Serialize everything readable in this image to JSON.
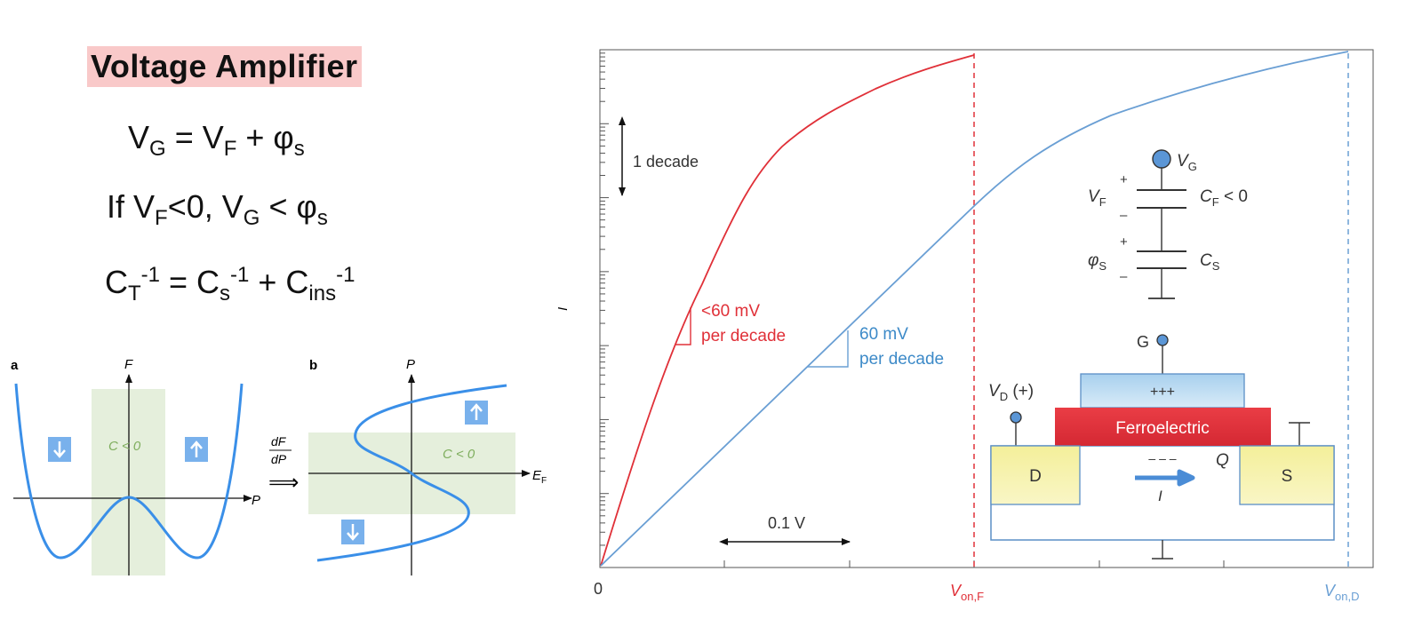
{
  "left": {
    "title": "Voltage  Amplifier",
    "eq1": {
      "a": "V",
      "a_sub": "G",
      "b": " = V",
      "b_sub": "F",
      "c": " + φ",
      "c_sub": "s"
    },
    "eq2": {
      "a": "If V",
      "a_sub": "F",
      "b": "<0, V",
      "b_sub": "G",
      "c": " < φ",
      "c_sub": "s"
    },
    "eq3": {
      "a": "C",
      "a_sub": "T",
      "a_sup": "-1",
      "b": " = C",
      "b_sub": "s",
      "b_sup": "-1",
      "c": " + C",
      "c_sub": "ins",
      "c_sup": "-1"
    }
  },
  "panel_a": {
    "label": "a",
    "y_axis": "F",
    "x_axis": "P",
    "region_label": "C < 0"
  },
  "panel_b": {
    "label": "b",
    "y_axis": "P",
    "x_axis": "E",
    "x_axis_sub": "F",
    "region_label": "C < 0"
  },
  "arrow_between": {
    "num": "dF",
    "den": "dP",
    "symbol": "⟹"
  },
  "chart": {
    "y_label": "I",
    "x_origin": "0",
    "decade_label": "1 decade",
    "scale_label": "0.1 V",
    "red_label_line1": "<60 mV",
    "red_label_line2": "per decade",
    "blue_label_line1": "60 mV",
    "blue_label_line2": "per decade",
    "von_f": "V",
    "von_f_sub": "on,F",
    "von_d": "V",
    "von_d_sub": "on,D",
    "colors": {
      "red": "#e03038",
      "blue": "#6a9fd4",
      "green": "#e5efdc",
      "axis": "#333333"
    }
  },
  "circuit": {
    "vg": "V",
    "vg_sub": "G",
    "vf": "V",
    "vf_sub": "F",
    "cf": "C",
    "cf_sub": "F",
    "cf_cond": " < 0",
    "phis": "φ",
    "phis_sub": "S",
    "cs": "C",
    "cs_sub": "S",
    "plus1": "+",
    "minus1": "–",
    "plus2": "+",
    "minus2": "–"
  },
  "device": {
    "gate": "G",
    "vd": "V",
    "vd_sub": "D",
    "vd_sign": " (+)",
    "gate_charge": "+++",
    "ferro": "Ferroelectric",
    "channel_charge": "– – –",
    "q": "Q",
    "drain": "D",
    "source": "S",
    "current": "I"
  }
}
